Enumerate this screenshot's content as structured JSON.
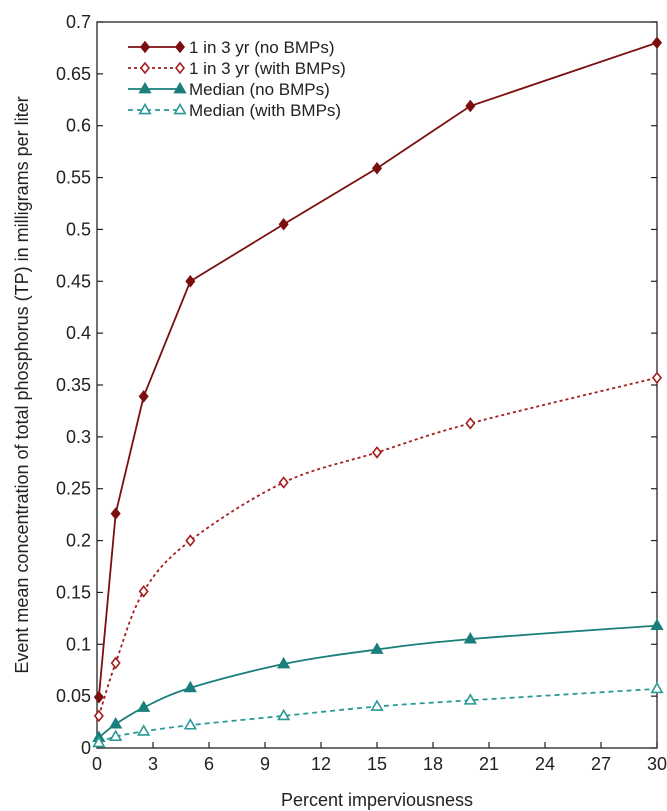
{
  "chart_data": {
    "type": "line",
    "title": "",
    "xlabel": "Percent imperviousness",
    "ylabel": "Event mean concentration of total phosphorus (TP) in milligrams per liter",
    "xlim": [
      0,
      30
    ],
    "ylim": [
      0,
      0.7
    ],
    "xticks": [
      "0",
      "3",
      "6",
      "9",
      "12",
      "15",
      "18",
      "21",
      "24",
      "27",
      "30"
    ],
    "yticks": [
      "0",
      "0.05",
      "0.1",
      "0.15",
      "0.2",
      "0.25",
      "0.3",
      "0.35",
      "0.4",
      "0.45",
      "0.5",
      "0.55",
      "0.6",
      "0.65",
      "0.7"
    ],
    "grid": false,
    "legend_position": "top-left",
    "x": [
      0.1,
      1,
      2.5,
      5,
      10,
      15,
      20,
      30
    ],
    "series": [
      {
        "name": "1 in 3 yr (no BMPs)",
        "values": [
          0.049,
          0.226,
          0.339,
          0.45,
          0.505,
          0.559,
          0.619,
          0.68
        ],
        "color": "#7b0f0f",
        "marker": "diamond-filled",
        "line": "solid"
      },
      {
        "name": "1 in 3 yr (with BMPs)",
        "values": [
          0.031,
          0.082,
          0.151,
          0.2,
          0.256,
          0.285,
          0.313,
          0.357
        ],
        "color": "#a51c1c",
        "marker": "diamond-open",
        "line": "dotted"
      },
      {
        "name": "Median (no BMPs)",
        "values": [
          0.01,
          0.023,
          0.039,
          0.058,
          0.081,
          0.095,
          0.105,
          0.118
        ],
        "color": "#1a7f7a",
        "marker": "triangle-filled",
        "line": "solid"
      },
      {
        "name": "Median (with BMPs)",
        "values": [
          0.005,
          0.011,
          0.016,
          0.022,
          0.031,
          0.04,
          0.046,
          0.057
        ],
        "color": "#2a9a95",
        "marker": "triangle-open",
        "line": "dashed"
      }
    ]
  }
}
